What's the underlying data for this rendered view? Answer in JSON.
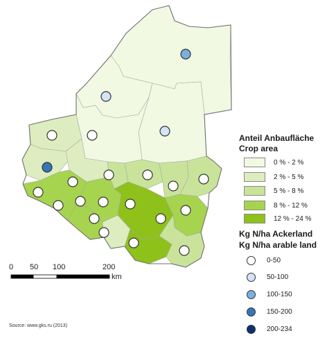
{
  "legend": {
    "crop_title_de": "Anteil Anbaufläche",
    "crop_title_en": "Crop area",
    "crop_classes": [
      {
        "label": "0 % - 2 %",
        "color": "#f2f9e3"
      },
      {
        "label": "2 % - 5 %",
        "color": "#ddedbf"
      },
      {
        "label": "5 % - 8 %",
        "color": "#c9e49a"
      },
      {
        "label": "8 % - 12 %",
        "color": "#a6d44f"
      },
      {
        "label": "12 % - 24 %",
        "color": "#8ec11a"
      }
    ],
    "kg_title_de": "Kg N/ha Ackerland",
    "kg_title_en": "Kg N/ha arable land",
    "kg_classes": [
      {
        "label": "0-50",
        "color": "#ffffff"
      },
      {
        "label": "50-100",
        "color": "#d2e4f5"
      },
      {
        "label": "100-150",
        "color": "#79b0de"
      },
      {
        "label": "150-200",
        "color": "#3477bb"
      },
      {
        "label": "200-234",
        "color": "#0d2f72"
      }
    ]
  },
  "scale": {
    "ticks": [
      "0",
      "50",
      "100",
      "200"
    ],
    "unit": "km"
  },
  "source": "Source: www.gks.ru (2013)",
  "colors": {
    "boundary": "#6f6f6f",
    "internal_boundary": "#a7a7a7"
  }
}
